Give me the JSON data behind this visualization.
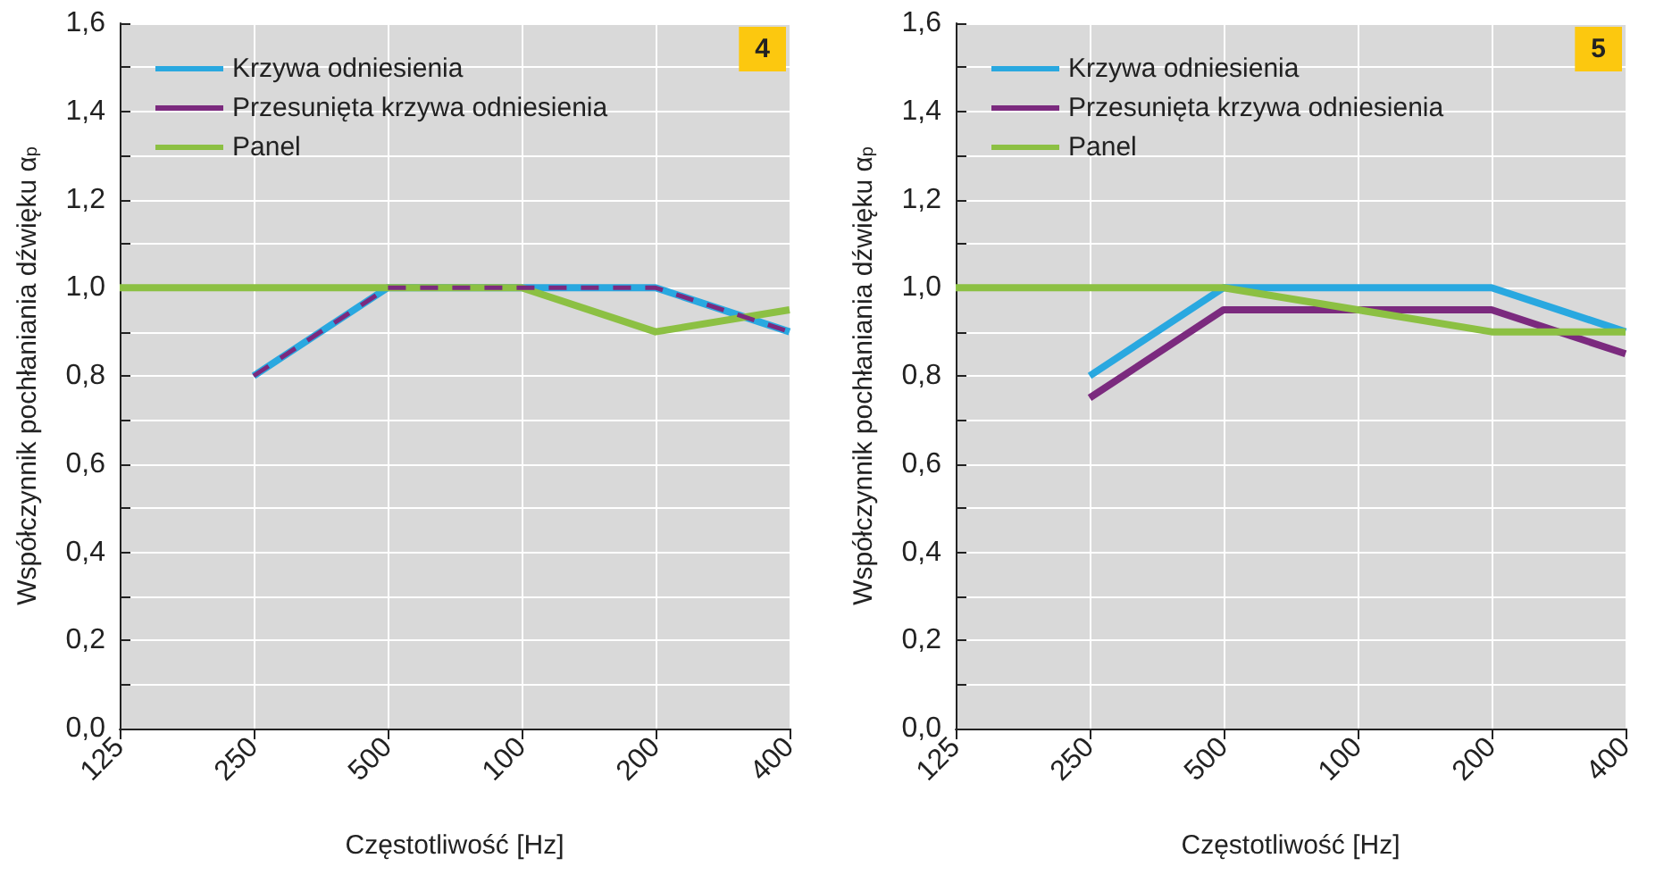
{
  "chart_data": [
    {
      "type": "line",
      "xlabel": "Częstotliwość [Hz]",
      "ylabel": "Współczynnik pochłaniania dźwięku α$_{p}$",
      "annotations": [
        "4"
      ],
      "categories": [
        "125",
        "250",
        "500",
        "100",
        "200",
        "400"
      ],
      "series": [
        {
          "name": "Krzywa odniesienia",
          "color": "#29a8e0",
          "values": [
            null,
            0.8,
            1.0,
            1.0,
            1.0,
            0.9
          ]
        },
        {
          "name": "Przesunięta krzywa odniesienia",
          "color": "#7b2a7e",
          "line_style": "dashed",
          "values": [
            null,
            0.8,
            1.0,
            1.0,
            1.0,
            0.9
          ]
        },
        {
          "name": "Panel",
          "color": "#8cc043",
          "values": [
            1.0,
            1.0,
            1.0,
            1.0,
            0.9,
            0.95
          ]
        }
      ],
      "ylim": [
        0,
        1.6
      ],
      "yticks": [
        {
          "value": 0,
          "label": "0,0"
        },
        {
          "value": 0.1,
          "label": null
        },
        {
          "value": 0.2,
          "label": "0,2"
        },
        {
          "value": 0.3,
          "label": null
        },
        {
          "value": 0.4,
          "label": "0,4"
        },
        {
          "value": 0.5,
          "label": null
        },
        {
          "value": 0.6,
          "label": "0,6"
        },
        {
          "value": 0.7,
          "label": null
        },
        {
          "value": 0.8,
          "label": "0,8"
        },
        {
          "value": 0.9,
          "label": null
        },
        {
          "value": 1.0,
          "label": "1,0"
        },
        {
          "value": 1.1,
          "label": null
        },
        {
          "value": 1.2,
          "label": "1,2"
        },
        {
          "value": 1.3,
          "label": null
        },
        {
          "value": 1.4,
          "label": "1,4"
        },
        {
          "value": 1.5,
          "label": null
        },
        {
          "value": 1.6,
          "label": "1,6"
        }
      ],
      "grid": true,
      "legend": "top left",
      "marker": "none",
      "line_style": "solid"
    },
    {
      "type": "line",
      "xlabel": "Częstotliwość [Hz]",
      "ylabel": "Współczynnik pochłaniania dźwięku α$_{p}$",
      "annotations": [
        "5"
      ],
      "categories": [
        "125",
        "250",
        "500",
        "100",
        "200",
        "400"
      ],
      "series": [
        {
          "name": "Krzywa odniesienia",
          "color": "#29a8e0",
          "values": [
            null,
            0.8,
            1.0,
            1.0,
            1.0,
            0.9
          ]
        },
        {
          "name": "Przesunięta krzywa odniesienia",
          "color": "#7b2a7e",
          "values": [
            null,
            0.75,
            0.95,
            0.95,
            0.95,
            0.85
          ]
        },
        {
          "name": "Panel",
          "color": "#8cc043",
          "values": [
            1.0,
            1.0,
            1.0,
            0.95,
            0.9,
            0.9
          ]
        }
      ],
      "ylim": [
        0,
        1.6
      ],
      "yticks": [
        {
          "value": 0,
          "label": "0,0"
        },
        {
          "value": 0.1,
          "label": null
        },
        {
          "value": 0.2,
          "label": "0,2"
        },
        {
          "value": 0.3,
          "label": null
        },
        {
          "value": 0.4,
          "label": "0,4"
        },
        {
          "value": 0.5,
          "label": null
        },
        {
          "value": 0.6,
          "label": "0,6"
        },
        {
          "value": 0.7,
          "label": null
        },
        {
          "value": 0.8,
          "label": "0,8"
        },
        {
          "value": 0.9,
          "label": null
        },
        {
          "value": 1.0,
          "label": "1,0"
        },
        {
          "value": 1.1,
          "label": null
        },
        {
          "value": 1.2,
          "label": "1,2"
        },
        {
          "value": 1.3,
          "label": null
        },
        {
          "value": 1.4,
          "label": "1,4"
        },
        {
          "value": 1.5,
          "label": null
        },
        {
          "value": 1.6,
          "label": "1,6"
        }
      ],
      "grid": true,
      "legend": "top left",
      "marker": "none",
      "line_style": "solid"
    }
  ]
}
